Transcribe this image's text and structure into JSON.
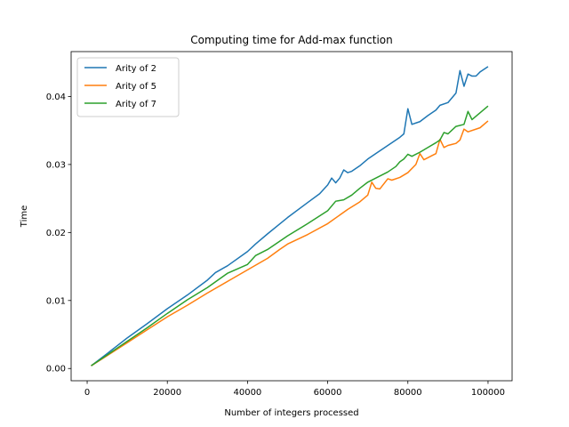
{
  "chart_data": {
    "type": "line",
    "title": "Computing time for Add-max function",
    "xlabel": "Number of integers processed",
    "ylabel": "Time",
    "xlim": [
      -4000,
      106000
    ],
    "ylim": [
      -0.0018,
      0.0466
    ],
    "xticks": [
      0,
      20000,
      40000,
      60000,
      80000,
      100000
    ],
    "xtick_labels": [
      "0",
      "20000",
      "40000",
      "60000",
      "80000",
      "100000"
    ],
    "yticks": [
      0,
      0.01,
      0.02,
      0.03,
      0.04
    ],
    "ytick_labels": [
      "0.00",
      "0.01",
      "0.02",
      "0.03",
      "0.04"
    ],
    "grid": false,
    "legend_position": "top-left",
    "series": [
      {
        "name": "Arity of 2",
        "color": "#1f77b4",
        "x": [
          1000,
          5000,
          10000,
          15000,
          20000,
          25000,
          30000,
          32000,
          35000,
          40000,
          42000,
          45000,
          50000,
          55000,
          58000,
          60000,
          61000,
          62000,
          63000,
          64000,
          65000,
          66000,
          68000,
          70000,
          72000,
          75000,
          78000,
          79000,
          80000,
          81000,
          82000,
          83000,
          85000,
          87000,
          88000,
          90000,
          92000,
          93000,
          94000,
          95000,
          96000,
          97000,
          98000,
          100000
        ],
        "y": [
          0.0004,
          0.0022,
          0.0045,
          0.0066,
          0.0088,
          0.0108,
          0.013,
          0.0141,
          0.0151,
          0.0172,
          0.0183,
          0.0198,
          0.0222,
          0.0244,
          0.0257,
          0.027,
          0.028,
          0.0273,
          0.028,
          0.0292,
          0.0288,
          0.029,
          0.0298,
          0.0308,
          0.0316,
          0.0328,
          0.034,
          0.0345,
          0.0382,
          0.0359,
          0.0361,
          0.0363,
          0.0372,
          0.038,
          0.0387,
          0.0391,
          0.0405,
          0.0438,
          0.0415,
          0.0433,
          0.043,
          0.043,
          0.0436,
          0.0444
        ]
      },
      {
        "name": "Arity of 5",
        "color": "#ff7f0e",
        "x": [
          1000,
          5000,
          10000,
          15000,
          20000,
          25000,
          30000,
          35000,
          40000,
          45000,
          48000,
          50000,
          55000,
          60000,
          65000,
          68000,
          70000,
          71000,
          72000,
          73000,
          75000,
          76000,
          78000,
          80000,
          82000,
          83000,
          84000,
          86000,
          87000,
          88000,
          89000,
          90000,
          92000,
          93000,
          94000,
          95000,
          98000,
          100000
        ],
        "y": [
          0.0004,
          0.0019,
          0.0038,
          0.0057,
          0.0076,
          0.0093,
          0.0111,
          0.0128,
          0.0145,
          0.0162,
          0.0175,
          0.0183,
          0.0197,
          0.0213,
          0.0234,
          0.0245,
          0.0255,
          0.0274,
          0.0265,
          0.0264,
          0.0279,
          0.0277,
          0.0281,
          0.0288,
          0.03,
          0.0316,
          0.0307,
          0.0313,
          0.0316,
          0.0337,
          0.0325,
          0.0328,
          0.0331,
          0.0336,
          0.0352,
          0.0348,
          0.0354,
          0.0364
        ]
      },
      {
        "name": "Arity of 7",
        "color": "#2ca02c",
        "x": [
          1000,
          5000,
          10000,
          15000,
          20000,
          25000,
          30000,
          35000,
          40000,
          42000,
          45000,
          50000,
          55000,
          60000,
          62000,
          64000,
          66000,
          68000,
          70000,
          72000,
          75000,
          77000,
          78000,
          79000,
          80000,
          81000,
          83000,
          85000,
          87000,
          88000,
          89000,
          90000,
          92000,
          94000,
          95000,
          96000,
          98000,
          100000
        ],
        "y": [
          0.0004,
          0.002,
          0.004,
          0.006,
          0.0081,
          0.0101,
          0.0119,
          0.014,
          0.0153,
          0.0166,
          0.0175,
          0.0195,
          0.0213,
          0.0232,
          0.0246,
          0.0248,
          0.0255,
          0.0265,
          0.0274,
          0.028,
          0.0289,
          0.0297,
          0.0304,
          0.0308,
          0.0315,
          0.0312,
          0.0318,
          0.0325,
          0.0332,
          0.0336,
          0.0347,
          0.0345,
          0.0356,
          0.0359,
          0.0378,
          0.0366,
          0.0376,
          0.0386
        ]
      }
    ]
  }
}
